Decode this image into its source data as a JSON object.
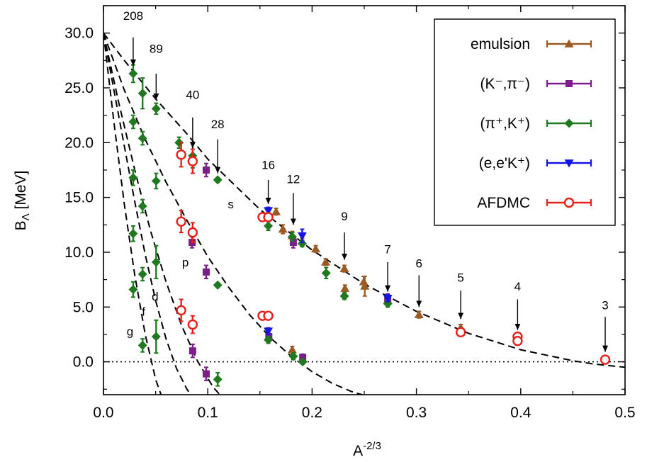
{
  "chart_data": {
    "type": "scatter",
    "xlabel": "A",
    "xlabel_sup": "-2/3",
    "ylabel": "B",
    "ylabel_sub": "Λ",
    "ylabel_unit": " [MeV]",
    "xlim": [
      0.0,
      0.5
    ],
    "ylim": [
      -3.0,
      32.5
    ],
    "xticks": [
      0.0,
      0.1,
      0.2,
      0.3,
      0.4,
      0.5
    ],
    "xtick_labels": [
      "0.0",
      "0.1",
      "0.2",
      "0.3",
      "0.4",
      "0.5"
    ],
    "yticks": [
      0.0,
      5.0,
      10.0,
      15.0,
      20.0,
      25.0,
      30.0
    ],
    "ytick_labels": [
      "0.0",
      "5.0",
      "10.0",
      "15.0",
      "20.0",
      "25.0",
      "30.0"
    ],
    "zero_line": true,
    "legend_position": "top-right",
    "series": [
      {
        "name": "emulsion",
        "color": "#9b5a24",
        "marker": "triangle-up",
        "points": [
          {
            "x": 0.1655,
            "y": 13.7,
            "err": 0.3
          },
          {
            "x": 0.172,
            "y": 12.1,
            "err": 0.4
          },
          {
            "x": 0.181,
            "y": 11.5,
            "err": 0.4
          },
          {
            "x": 0.1905,
            "y": 11.0,
            "err": 0.3
          },
          {
            "x": 0.2035,
            "y": 10.3,
            "err": 0.3
          },
          {
            "x": 0.213,
            "y": 9.1,
            "err": 0.3
          },
          {
            "x": 0.231,
            "y": 8.5,
            "err": 0.3
          },
          {
            "x": 0.2315,
            "y": 6.7,
            "err": 0.3
          },
          {
            "x": 0.2495,
            "y": 7.3,
            "err": 0.5
          },
          {
            "x": 0.2505,
            "y": 6.9,
            "err": 0.9
          },
          {
            "x": 0.2725,
            "y": 5.6,
            "err": 0.3
          },
          {
            "x": 0.3025,
            "y": 4.3,
            "err": 0.3
          },
          {
            "x": 0.3425,
            "y": 3.1,
            "err": 0.3
          },
          {
            "x": 0.181,
            "y": 1.1,
            "err": 0.3
          }
        ]
      },
      {
        "name": "(K⁻,π⁻)",
        "color": "#7b1e8c",
        "marker": "square",
        "points": [
          {
            "x": 0.0985,
            "y": 17.5,
            "err": 0.6
          },
          {
            "x": 0.182,
            "y": 10.9,
            "err": 0.5
          },
          {
            "x": 0.2725,
            "y": 5.8,
            "err": 0.4
          },
          {
            "x": 0.085,
            "y": 10.9,
            "err": 0.5
          },
          {
            "x": 0.0985,
            "y": 8.2,
            "err": 0.6
          },
          {
            "x": 0.1585,
            "y": 2.3,
            "err": 0.3
          },
          {
            "x": 0.191,
            "y": 0.4,
            "err": 0.3
          },
          {
            "x": 0.0855,
            "y": 1.0,
            "err": 0.6
          },
          {
            "x": 0.0985,
            "y": -1.1,
            "err": 0.6
          }
        ]
      },
      {
        "name": "(π⁺,K⁺)",
        "color": "#1f7a1f",
        "marker": "diamond",
        "points": [
          {
            "x": 0.0285,
            "y": 26.3,
            "err": 0.8
          },
          {
            "x": 0.0375,
            "y": 24.5,
            "err": 1.4
          },
          {
            "x": 0.0505,
            "y": 23.1,
            "err": 0.5
          },
          {
            "x": 0.0725,
            "y": 20.0,
            "err": 0.5
          },
          {
            "x": 0.0855,
            "y": 18.8,
            "err": 1.1
          },
          {
            "x": 0.1095,
            "y": 16.6,
            "err": 0.2
          },
          {
            "x": 0.158,
            "y": 12.4,
            "err": 0.4
          },
          {
            "x": 0.181,
            "y": 11.4,
            "err": 0.4
          },
          {
            "x": 0.1905,
            "y": 10.8,
            "err": 0.3
          },
          {
            "x": 0.2135,
            "y": 8.1,
            "err": 0.5
          },
          {
            "x": 0.231,
            "y": 6.0,
            "err": 0.3
          },
          {
            "x": 0.2725,
            "y": 5.3,
            "err": 0.3
          },
          {
            "x": 0.0285,
            "y": 21.9,
            "err": 0.6
          },
          {
            "x": 0.0375,
            "y": 20.4,
            "err": 0.6
          },
          {
            "x": 0.0505,
            "y": 16.5,
            "err": 0.7
          },
          {
            "x": 0.1095,
            "y": 7.0,
            "err": 0.2
          },
          {
            "x": 0.158,
            "y": 2.0,
            "err": 0.3
          },
          {
            "x": 0.182,
            "y": 0.5,
            "err": 0.3
          },
          {
            "x": 0.191,
            "y": 0.0,
            "err": 0.2
          },
          {
            "x": 0.0285,
            "y": 16.8,
            "err": 0.7
          },
          {
            "x": 0.0375,
            "y": 14.2,
            "err": 0.6
          },
          {
            "x": 0.0505,
            "y": 9.1,
            "err": 1.5
          },
          {
            "x": 0.1095,
            "y": -1.6,
            "err": 0.6
          },
          {
            "x": 0.0285,
            "y": 11.7,
            "err": 0.7
          },
          {
            "x": 0.0375,
            "y": 8.0,
            "err": 0.6
          },
          {
            "x": 0.0505,
            "y": 2.3,
            "err": 1.5
          },
          {
            "x": 0.0285,
            "y": 6.6,
            "err": 0.7
          },
          {
            "x": 0.0375,
            "y": 1.5,
            "err": 0.6
          }
        ]
      },
      {
        "name": "(e,e'K⁺)",
        "color": "#1414e6",
        "marker": "triangle-down",
        "points": [
          {
            "x": 0.158,
            "y": 13.8,
            "err": 0.3
          },
          {
            "x": 0.1905,
            "y": 11.5,
            "err": 0.6
          },
          {
            "x": 0.2725,
            "y": 5.8,
            "err": 0.3
          },
          {
            "x": 0.158,
            "y": 2.8,
            "err": 0.3
          }
        ]
      },
      {
        "name": "AFDMC",
        "color": "#e8201a",
        "marker": "open-circle",
        "points": [
          {
            "x": 0.0745,
            "y": 18.9,
            "err": 1.1
          },
          {
            "x": 0.0855,
            "y": 18.3,
            "err": 1.1
          },
          {
            "x": 0.1525,
            "y": 13.2,
            "err": 0.2
          },
          {
            "x": 0.158,
            "y": 13.2,
            "err": 0.2
          },
          {
            "x": 0.3425,
            "y": 2.7,
            "err": 0.1
          },
          {
            "x": 0.397,
            "y": 2.3,
            "err": 0.1
          },
          {
            "x": 0.397,
            "y": 1.9,
            "err": 0.1
          },
          {
            "x": 0.481,
            "y": 0.2,
            "err": 0.1
          },
          {
            "x": 0.0745,
            "y": 12.8,
            "err": 1.0
          },
          {
            "x": 0.0855,
            "y": 11.8,
            "err": 0.9
          },
          {
            "x": 0.1525,
            "y": 4.2,
            "err": 0.2
          },
          {
            "x": 0.158,
            "y": 4.2,
            "err": 0.2
          },
          {
            "x": 0.0745,
            "y": 4.7,
            "err": 1.0
          },
          {
            "x": 0.0855,
            "y": 3.4,
            "err": 0.8
          }
        ]
      }
    ],
    "fit_curves": [
      {
        "label": "s",
        "points": [
          [
            0.0,
            30.0
          ],
          [
            0.02,
            27.5
          ],
          [
            0.05,
            24.0
          ],
          [
            0.08,
            20.8
          ],
          [
            0.1,
            18.5
          ],
          [
            0.15,
            13.9
          ],
          [
            0.2,
            10.2
          ],
          [
            0.25,
            7.1
          ],
          [
            0.3,
            4.6
          ],
          [
            0.35,
            2.6
          ],
          [
            0.4,
            1.1
          ],
          [
            0.45,
            0.1
          ],
          [
            0.47,
            -0.2
          ],
          [
            0.5,
            -0.5
          ]
        ]
      },
      {
        "label": "p",
        "points": [
          [
            0.0,
            30.0
          ],
          [
            0.02,
            24.8
          ],
          [
            0.04,
            20.3
          ],
          [
            0.06,
            16.4
          ],
          [
            0.08,
            12.9
          ],
          [
            0.1,
            9.6
          ],
          [
            0.12,
            6.8
          ],
          [
            0.14,
            4.3
          ],
          [
            0.16,
            2.2
          ],
          [
            0.18,
            0.5
          ],
          [
            0.2,
            -0.9
          ],
          [
            0.22,
            -2.0
          ],
          [
            0.24,
            -2.8
          ],
          [
            0.26,
            -3.3
          ]
        ]
      },
      {
        "label": "d",
        "points": [
          [
            0.0,
            30.0
          ],
          [
            0.015,
            23.5
          ],
          [
            0.03,
            17.5
          ],
          [
            0.045,
            12.0
          ],
          [
            0.06,
            7.3
          ],
          [
            0.075,
            3.3
          ],
          [
            0.09,
            0.1
          ],
          [
            0.105,
            -2.3
          ],
          [
            0.12,
            -3.9
          ]
        ]
      },
      {
        "label": "f",
        "points": [
          [
            0.0,
            30.0
          ],
          [
            0.01,
            24.8
          ],
          [
            0.02,
            19.7
          ],
          [
            0.03,
            14.6
          ],
          [
            0.04,
            9.8
          ],
          [
            0.05,
            5.6
          ],
          [
            0.06,
            2.1
          ],
          [
            0.07,
            -0.6
          ],
          [
            0.08,
            -2.5
          ],
          [
            0.09,
            -3.8
          ]
        ]
      },
      {
        "label": "g",
        "points": [
          [
            0.0,
            30.0
          ],
          [
            0.01,
            21.9
          ],
          [
            0.02,
            14.4
          ],
          [
            0.03,
            7.9
          ],
          [
            0.04,
            2.5
          ],
          [
            0.05,
            -1.6
          ],
          [
            0.06,
            -4.3
          ]
        ]
      }
    ],
    "curve_labels": [
      {
        "text": "s",
        "x": 0.122,
        "y": 14.0
      },
      {
        "text": "p",
        "x": 0.0785,
        "y": 8.7
      },
      {
        "text": "d",
        "x": 0.0495,
        "y": 5.6
      },
      {
        "text": "f",
        "x": 0.0385,
        "y": 4.2
      },
      {
        "text": "g",
        "x": 0.0255,
        "y": 2.4
      }
    ],
    "annotations": [
      {
        "text": "208",
        "x": 0.0285,
        "y_text": 31.2,
        "y_arrow_start": 29.6,
        "y_arrow_end": 27.0
      },
      {
        "text": "89",
        "x": 0.0505,
        "y_text": 28.2,
        "y_arrow_start": 26.3,
        "y_arrow_end": 23.9
      },
      {
        "text": "40",
        "x": 0.0855,
        "y_text": 24.0,
        "y_arrow_start": 22.3,
        "y_arrow_end": 19.5
      },
      {
        "text": "28",
        "x": 0.1095,
        "y_text": 21.3,
        "y_arrow_start": 20.3,
        "y_arrow_end": 17.2
      },
      {
        "text": "16",
        "x": 0.158,
        "y_text": 17.6,
        "y_arrow_start": 16.6,
        "y_arrow_end": 14.4
      },
      {
        "text": "12",
        "x": 0.182,
        "y_text": 16.3,
        "y_arrow_start": 15.4,
        "y_arrow_end": 12.5
      },
      {
        "text": "9",
        "x": 0.231,
        "y_text": 12.9,
        "y_arrow_start": 11.8,
        "y_arrow_end": 9.3
      },
      {
        "text": "7",
        "x": 0.2725,
        "y_text": 9.9,
        "y_arrow_start": 9.1,
        "y_arrow_end": 6.4
      },
      {
        "text": "6",
        "x": 0.3025,
        "y_text": 8.6,
        "y_arrow_start": 7.9,
        "y_arrow_end": 5.0
      },
      {
        "text": "5",
        "x": 0.3425,
        "y_text": 7.3,
        "y_arrow_start": 6.5,
        "y_arrow_end": 3.9
      },
      {
        "text": "4",
        "x": 0.397,
        "y_text": 6.5,
        "y_arrow_start": 5.7,
        "y_arrow_end": 2.9
      },
      {
        "text": "3",
        "x": 0.481,
        "y_text": 4.8,
        "y_arrow_start": 4.1,
        "y_arrow_end": 0.9
      }
    ]
  }
}
